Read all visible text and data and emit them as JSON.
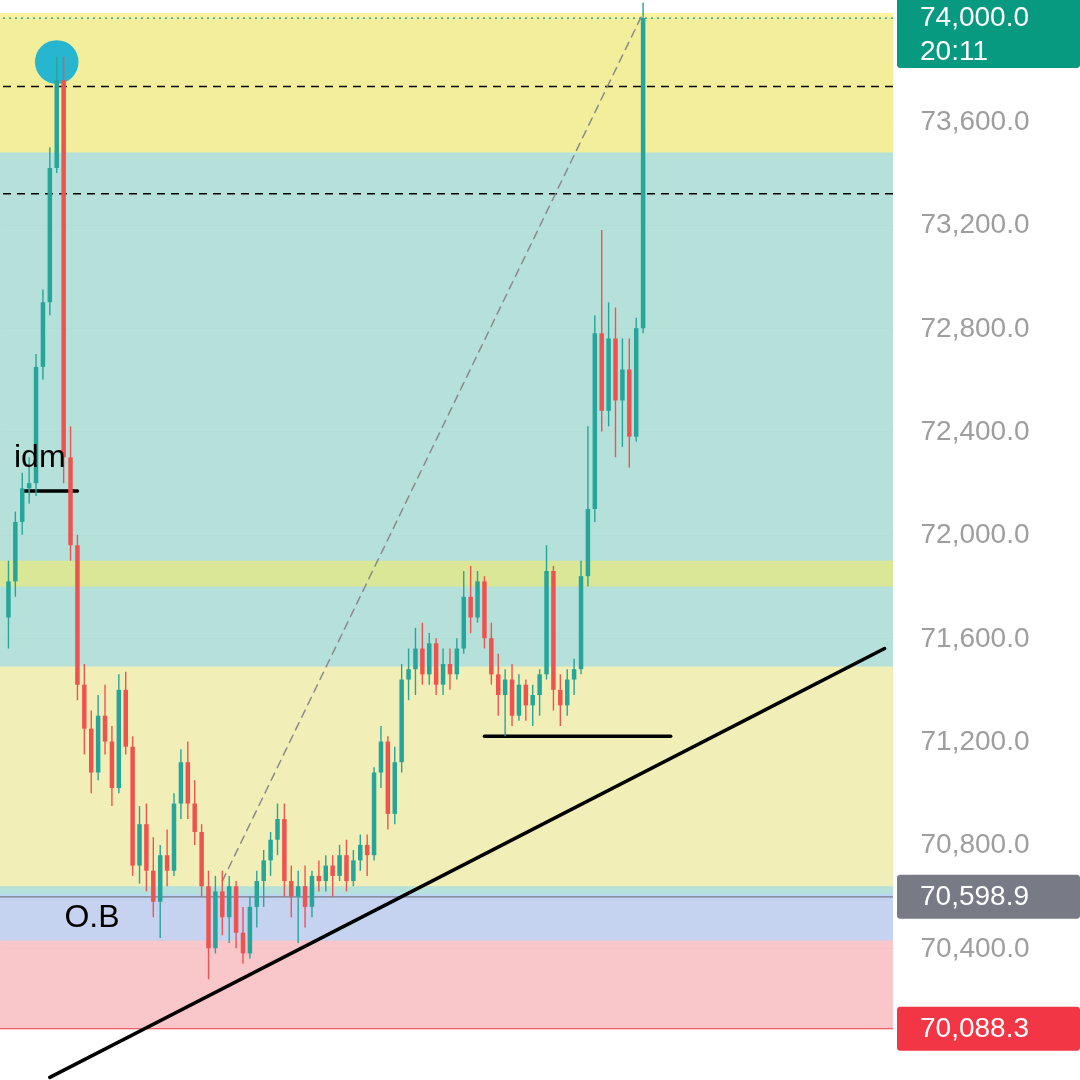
{
  "chart_data": {
    "type": "candlestick",
    "categories": [
      null,
      null,
      null,
      null,
      null,
      null,
      null,
      null,
      null,
      null,
      null,
      null,
      null,
      null,
      null,
      null,
      null,
      null,
      null,
      null,
      null,
      null,
      null,
      null,
      null,
      null,
      null,
      null,
      null,
      null,
      null,
      null,
      null,
      null,
      null,
      null,
      null,
      null,
      null,
      null,
      null,
      null,
      null,
      null,
      null,
      null,
      null,
      null,
      null,
      null,
      null,
      null,
      null,
      null,
      null,
      null,
      null,
      null,
      null,
      null,
      null,
      null,
      null,
      null,
      null,
      null,
      null,
      null,
      null,
      null,
      null,
      null,
      null,
      null,
      null,
      null,
      null,
      null,
      null,
      null,
      null,
      null,
      null,
      null,
      null,
      null,
      null,
      null,
      null,
      null,
      null,
      null,
      null,
      null,
      null,
      null,
      null,
      null,
      null,
      null,
      null,
      null,
      null,
      null,
      null,
      null,
      null,
      null,
      null,
      null,
      null,
      null,
      null,
      null,
      null,
      null,
      null,
      null,
      null,
      null,
      null,
      null,
      null,
      null,
      null,
      null,
      null,
      null
    ],
    "colors": [
      "#26a69a",
      "#26a69a",
      "#26a69a",
      "#26a69a",
      "#26a69a",
      "#26a69a",
      "#26a69a",
      "#26a69a",
      "#ef5350",
      "#ef5350",
      "#ef5350",
      "#ef5350",
      "#ef5350",
      "#26a69a",
      "#ef5350",
      "#ef5350",
      "#26a69a",
      "#ef5350",
      "#ef5350",
      "#26a69a",
      "#ef5350",
      "#ef5350",
      "#26a69a",
      "#ef5350",
      "#26a69a",
      "#26a69a",
      "#ef5350",
      "#ef5350",
      "#ef5350",
      "#ef5350",
      "#26a69a",
      "#ef5350",
      "#26a69a",
      "#ef5350",
      "#ef5350",
      "#26a69a",
      "#26a69a",
      "#26a69a",
      "#26a69a",
      "#26a69a",
      "#ef5350",
      "#ef5350",
      "#26a69a",
      "#ef5350",
      "#26a69a",
      "#ef5350",
      "#26a69a",
      "#ef5350",
      "#26a69a",
      "#ef5350",
      "#26a69a",
      "#26a69a",
      "#ef5350",
      "#26a69a",
      "#26a69a",
      "#ef5350",
      "#26a69a",
      "#26a69a",
      "#26a69a",
      "#26a69a",
      "#ef5350",
      "#26a69a",
      "#ef5350",
      "#26a69a",
      "#ef5350",
      "#26a69a",
      "#26a69a",
      "#ef5350",
      "#26a69a",
      "#ef5350",
      "#ef5350",
      "#ef5350",
      "#26a69a",
      "#ef5350",
      "#26a69a",
      "#ef5350",
      "#26a69a",
      "#26a69a",
      "#26a69a",
      "#ef5350",
      "#ef5350",
      "#26a69a",
      "#26a69a",
      "#26a69a",
      "#26a69a",
      "#26a69a",
      "#ef5350",
      "#26a69a",
      "#ef5350",
      "#26a69a",
      "#ef5350",
      "#26a69a",
      "#26a69a",
      null,
      null,
      null,
      null,
      null,
      null,
      null,
      null,
      null,
      null,
      null,
      null,
      null,
      null,
      null,
      null,
      null,
      null,
      null,
      null,
      null,
      null,
      null,
      null,
      null,
      null,
      null,
      null,
      null,
      null,
      null,
      null,
      null,
      null,
      null
    ],
    "ohlc": [
      [
        71680,
        71900,
        71560,
        71820
      ],
      [
        71820,
        72090,
        71760,
        72050
      ],
      [
        72050,
        72240,
        72000,
        72180
      ],
      [
        72180,
        72300,
        72120,
        72200
      ],
      [
        72200,
        72700,
        72150,
        72650
      ],
      [
        72650,
        72950,
        72600,
        72900
      ],
      [
        72900,
        73500,
        72850,
        73420
      ],
      [
        73420,
        73850,
        73400,
        73760
      ],
      [
        73760,
        73850,
        72200,
        72300
      ],
      [
        72300,
        72420,
        71900,
        71960
      ],
      [
        71960,
        72000,
        71360,
        71420
      ],
      [
        71420,
        71500,
        71150,
        71250
      ],
      [
        71250,
        71320,
        71000,
        71080
      ],
      [
        71080,
        71380,
        71050,
        71300
      ],
      [
        71300,
        71420,
        71150,
        71200
      ],
      [
        71200,
        71260,
        70950,
        71020
      ],
      [
        71020,
        71460,
        71000,
        71400
      ],
      [
        71400,
        71470,
        71150,
        71180
      ],
      [
        71180,
        71220,
        70680,
        70720
      ],
      [
        70720,
        70950,
        70650,
        70880
      ],
      [
        70880,
        70960,
        70620,
        70700
      ],
      [
        70700,
        70830,
        70520,
        70580
      ],
      [
        70580,
        70800,
        70440,
        70760
      ],
      [
        70760,
        70860,
        70640,
        70700
      ],
      [
        70700,
        71000,
        70680,
        70960
      ],
      [
        70960,
        71170,
        70900,
        71120
      ],
      [
        71120,
        71200,
        70900,
        70960
      ],
      [
        70960,
        71050,
        70800,
        70850
      ],
      [
        70850,
        70880,
        70600,
        70640
      ],
      [
        70640,
        70700,
        70280,
        70400
      ],
      [
        70400,
        70680,
        70380,
        70620
      ],
      [
        70620,
        70700,
        70450,
        70520
      ],
      [
        70520,
        70680,
        70420,
        70640
      ],
      [
        70640,
        70660,
        70400,
        70460
      ],
      [
        70460,
        70560,
        70340,
        70380
      ],
      [
        70380,
        70600,
        70360,
        70560
      ],
      [
        70560,
        70700,
        70480,
        70660
      ],
      [
        70660,
        70780,
        70560,
        70740
      ],
      [
        70740,
        70850,
        70680,
        70820
      ],
      [
        70820,
        70960,
        70760,
        70900
      ],
      [
        70900,
        70960,
        70600,
        70660
      ],
      [
        70660,
        70720,
        70520,
        70600
      ],
      [
        70600,
        70700,
        70420,
        70640
      ],
      [
        70640,
        70720,
        70480,
        70560
      ],
      [
        70560,
        70700,
        70520,
        70680
      ],
      [
        70680,
        70740,
        70620,
        70660
      ],
      [
        70660,
        70760,
        70620,
        70720
      ],
      [
        70720,
        70760,
        70600,
        70680
      ],
      [
        70680,
        70800,
        70660,
        70760
      ],
      [
        70760,
        70820,
        70620,
        70660
      ],
      [
        70660,
        70780,
        70640,
        70740
      ],
      [
        70740,
        70840,
        70700,
        70800
      ],
      [
        70800,
        70840,
        70680,
        70760
      ],
      [
        70760,
        71100,
        70740,
        71080
      ],
      [
        71080,
        71260,
        71020,
        71200
      ],
      [
        71200,
        71220,
        70860,
        70920
      ],
      [
        70920,
        71180,
        70880,
        71120
      ],
      [
        71120,
        71500,
        71080,
        71440
      ],
      [
        71440,
        71560,
        71360,
        71480
      ],
      [
        71480,
        71640,
        71380,
        71560
      ],
      [
        71560,
        71660,
        71420,
        71460
      ],
      [
        71460,
        71620,
        71420,
        71580
      ],
      [
        71580,
        71600,
        71380,
        71420
      ],
      [
        71420,
        71560,
        71380,
        71500
      ],
      [
        71500,
        71560,
        71400,
        71460
      ],
      [
        71460,
        71600,
        71440,
        71560
      ],
      [
        71560,
        71860,
        71540,
        71760
      ],
      [
        71760,
        71880,
        71620,
        71680
      ],
      [
        71680,
        71860,
        71660,
        71820
      ],
      [
        71820,
        71840,
        71560,
        71600
      ],
      [
        71600,
        71660,
        71420,
        71460
      ],
      [
        71460,
        71540,
        71300,
        71380
      ],
      [
        71380,
        71480,
        71220,
        71440
      ],
      [
        71440,
        71500,
        71260,
        71300
      ],
      [
        71300,
        71460,
        71280,
        71420
      ],
      [
        71420,
        71440,
        71280,
        71340
      ],
      [
        71340,
        71420,
        71260,
        71380
      ],
      [
        71380,
        71480,
        71300,
        71460
      ],
      [
        71460,
        71960,
        71440,
        71860
      ],
      [
        71860,
        71880,
        71320,
        71400
      ],
      [
        71400,
        71460,
        71260,
        71340
      ],
      [
        71340,
        71480,
        71300,
        71440
      ],
      [
        71440,
        71520,
        71380,
        71480
      ],
      [
        71480,
        71900,
        71460,
        71840
      ],
      [
        71840,
        72420,
        71800,
        72100
      ],
      [
        72100,
        72850,
        72050,
        72780
      ],
      [
        72780,
        73180,
        72400,
        72480
      ],
      [
        72480,
        72900,
        72420,
        72760
      ],
      [
        72760,
        72880,
        72300,
        72520
      ],
      [
        72520,
        72760,
        72340,
        72640
      ],
      [
        72640,
        72760,
        72260,
        72380
      ],
      [
        72380,
        72840,
        72360,
        72800
      ],
      [
        72800,
        74060,
        72780,
        74000
      ],
      null,
      null,
      null,
      null,
      null,
      null,
      null,
      null,
      null,
      null,
      null,
      null,
      null,
      null,
      null,
      null,
      null,
      null,
      null,
      null,
      null,
      null,
      null,
      null,
      null,
      null,
      null,
      null,
      null,
      null,
      null,
      null,
      null,
      null,
      null
    ],
    "series": [
      {
        "type": "line",
        "color": "#000000",
        "line_style": "solid",
        "values": [
          null,
          null,
          null,
          null,
          null,
          null,
          69900,
          null,
          null,
          null,
          null,
          null,
          null,
          null,
          null,
          null,
          null,
          null,
          null,
          null,
          null,
          null,
          null,
          null,
          null,
          null,
          null,
          null,
          null,
          null,
          null,
          null,
          null,
          null,
          null,
          null,
          null,
          null,
          null,
          null,
          null,
          null,
          null,
          null,
          null,
          null,
          null,
          null,
          null,
          null,
          null,
          null,
          null,
          null,
          null,
          null,
          null,
          null,
          null,
          null,
          null,
          null,
          null,
          null,
          null,
          null,
          null,
          null,
          null,
          null,
          null,
          null,
          null,
          null,
          null,
          null,
          null,
          null,
          null,
          null,
          null,
          null,
          null,
          null,
          null,
          null,
          null,
          null,
          null,
          null,
          null,
          null,
          null,
          null,
          null,
          null,
          null,
          null,
          null,
          null,
          null,
          null,
          null,
          null,
          null,
          null,
          null,
          null,
          null,
          null,
          null,
          null,
          null,
          null,
          null,
          null,
          null,
          null,
          null,
          null,
          null,
          null,
          null,
          null,
          null,
          null,
          null,
          71560
        ]
      },
      {
        "type": "line",
        "color": "#8a8a8a",
        "line_style": "dashed",
        "values": [
          null,
          null,
          null,
          null,
          null,
          null,
          null,
          null,
          null,
          null,
          null,
          null,
          null,
          null,
          null,
          null,
          null,
          null,
          null,
          null,
          null,
          null,
          null,
          null,
          null,
          null,
          null,
          null,
          null,
          null,
          null,
          70660,
          null,
          null,
          null,
          null,
          null,
          null,
          null,
          null,
          null,
          null,
          null,
          null,
          null,
          null,
          null,
          null,
          null,
          null,
          null,
          null,
          null,
          null,
          null,
          null,
          null,
          null,
          null,
          null,
          null,
          null,
          null,
          null,
          null,
          null,
          null,
          null,
          null,
          null,
          null,
          null,
          null,
          null,
          null,
          null,
          null,
          null,
          null,
          null,
          null,
          null,
          null,
          null,
          null,
          null,
          null,
          null,
          null,
          null,
          null,
          null,
          74020,
          null,
          null,
          null,
          null,
          null,
          null,
          null,
          null,
          null,
          null,
          null,
          null,
          null,
          null,
          null,
          null,
          null,
          null,
          null,
          null,
          null,
          null,
          null,
          null,
          null,
          null,
          null,
          null,
          null,
          null,
          null,
          null,
          null,
          null,
          null
        ]
      },
      {
        "type": "line",
        "color": "#000000",
        "line_style": "solid",
        "values": [
          null,
          null,
          null,
          null,
          null,
          null,
          null,
          null,
          null,
          null,
          null,
          null,
          null,
          null,
          null,
          null,
          null,
          null,
          null,
          null,
          null,
          null,
          null,
          null,
          null,
          null,
          null,
          null,
          null,
          null,
          null,
          null,
          null,
          null,
          null,
          null,
          null,
          null,
          null,
          null,
          null,
          null,
          null,
          null,
          null,
          null,
          null,
          null,
          null,
          null,
          null,
          null,
          null,
          null,
          null,
          null,
          null,
          null,
          null,
          null,
          null,
          null,
          null,
          null,
          null,
          null,
          null,
          null,
          null,
          71220,
          null,
          null,
          null,
          null,
          null,
          null,
          null,
          null,
          null,
          null,
          null,
          null,
          null,
          null,
          null,
          null,
          null,
          null,
          null,
          null,
          null,
          null,
          null,
          null,
          null,
          null,
          71220,
          null,
          null,
          null,
          null,
          null,
          null,
          null,
          null,
          null,
          null,
          null,
          null,
          null,
          null,
          null,
          null,
          null,
          null,
          null,
          null,
          null,
          null,
          null,
          null,
          null,
          null,
          null,
          null,
          null,
          null,
          null
        ]
      },
      {
        "type": "line",
        "color": "#000000",
        "line_style": "solid",
        "values": [
          null,
          null,
          72170,
          null,
          null,
          null,
          null,
          null,
          null,
          null,
          72170,
          null,
          null,
          null,
          null,
          null,
          null,
          null,
          null,
          null,
          null,
          null,
          null,
          null,
          null,
          null,
          null,
          null,
          null,
          null,
          null,
          null,
          null,
          null,
          null,
          null,
          null,
          null,
          null,
          null,
          null,
          null,
          null,
          null,
          null,
          null,
          null,
          null,
          null,
          null,
          null,
          null,
          null,
          null,
          null,
          null,
          null,
          null,
          null,
          null,
          null,
          null,
          null,
          null,
          null,
          null,
          null,
          null,
          null,
          null,
          null,
          null,
          null,
          null,
          null,
          null,
          null,
          null,
          null,
          null,
          null,
          null,
          null,
          null,
          null,
          null,
          null,
          null,
          null,
          null,
          null,
          null,
          null,
          null,
          null,
          null,
          null,
          null,
          null,
          null,
          null,
          null,
          null,
          null,
          null,
          null,
          null,
          null,
          null,
          null,
          null,
          null,
          null,
          null,
          null,
          null,
          null,
          null,
          null,
          null,
          null,
          null,
          null,
          null,
          null,
          null,
          null,
          null
        ]
      },
      {
        "type": "scatter",
        "color": "#1ab2d2",
        "marker": "circle",
        "values": [
          null,
          null,
          null,
          null,
          null,
          null,
          null,
          73830,
          null,
          null,
          null,
          null,
          null,
          null,
          null,
          null,
          null,
          null,
          null,
          null,
          null,
          null,
          null,
          null,
          null,
          null,
          null,
          null,
          null,
          null,
          null,
          null,
          null,
          null,
          null,
          null,
          null,
          null,
          null,
          null,
          null,
          null,
          null,
          null,
          null,
          null,
          null,
          null,
          null,
          null,
          null,
          null,
          null,
          null,
          null,
          null,
          null,
          null,
          null,
          null,
          null,
          null,
          null,
          null,
          null,
          null,
          null,
          null,
          null,
          null,
          null,
          null,
          null,
          null,
          null,
          null,
          null,
          null,
          null,
          null,
          null,
          null,
          null,
          null,
          null,
          null,
          null,
          null,
          null,
          null,
          null,
          null,
          null,
          null,
          null,
          null,
          null,
          null,
          null,
          null,
          null,
          null,
          null,
          null,
          null,
          null,
          null,
          null,
          null,
          null,
          null,
          null,
          null,
          null,
          null,
          null,
          null,
          null,
          null,
          null,
          null,
          null,
          null,
          null,
          null,
          null,
          null,
          null
        ]
      }
    ],
    "ylim": [
      69890,
      74070
    ],
    "yticks": [
      {
        "value": 70400,
        "label": "70,400.0"
      },
      {
        "value": 70800,
        "label": "70,800.0"
      },
      {
        "value": 71200,
        "label": "71,200.0"
      },
      {
        "value": 71600,
        "label": "71,600.0"
      },
      {
        "value": 72000,
        "label": "72,000.0"
      },
      {
        "value": 72400,
        "label": "72,400.0"
      },
      {
        "value": 72800,
        "label": "72,800.0"
      },
      {
        "value": 73200,
        "label": "73,200.0"
      },
      {
        "value": 73600,
        "label": "73,600.0"
      }
    ],
    "grid": "y",
    "bands": [
      {
        "axis": "y",
        "from": 70598.9,
        "to": 74000,
        "color": "#a9dcd3"
      },
      {
        "axis": "y",
        "from": 70088.3,
        "to": 70598.9,
        "color": "#f8bcc0"
      },
      {
        "axis": "y",
        "from": 73480,
        "to": 74020,
        "color": "#fdf08f"
      },
      {
        "axis": "y",
        "from": 70640,
        "to": 71490,
        "color": "#fbf1b0"
      },
      {
        "axis": "y",
        "from": 70430,
        "to": 70610,
        "color": "#bcd3f7",
        "label": "O.B"
      },
      {
        "axis": "y",
        "from": 71800,
        "to": 71900,
        "color": "#dfe78a"
      }
    ],
    "ref_lines": [
      {
        "axis": "y",
        "value": 74000,
        "label": "74,000.0",
        "color": "#089981",
        "line_style": "dotted"
      },
      {
        "axis": "y",
        "value": 70598.9,
        "label": "70,598.9",
        "color": "#787b86"
      },
      {
        "axis": "y",
        "value": 70088.3,
        "label": "70,088.3",
        "color": "#f23645"
      },
      {
        "axis": "y",
        "value": 73735,
        "color": "#000000",
        "line_style": "dashed"
      },
      {
        "axis": "y",
        "value": 73320,
        "color": "#000000",
        "line_style": "dashed"
      }
    ],
    "annotations": [
      {
        "text": "idm",
        "y": 72300
      },
      "20:11"
    ]
  }
}
